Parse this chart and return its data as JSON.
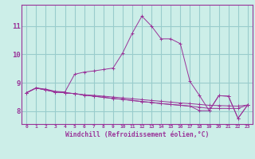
{
  "xlabel": "Windchill (Refroidissement éolien,°C)",
  "bg_color": "#cceee8",
  "line_color": "#993399",
  "grid_color": "#99cccc",
  "axis_color": "#993399",
  "x_ticks": [
    0,
    1,
    2,
    3,
    4,
    5,
    6,
    7,
    8,
    9,
    10,
    11,
    12,
    13,
    14,
    15,
    16,
    17,
    18,
    19,
    20,
    21,
    22,
    23
  ],
  "y_ticks": [
    8,
    9,
    10,
    11
  ],
  "ylim": [
    7.55,
    11.75
  ],
  "xlim": [
    -0.5,
    23.5
  ],
  "lines": [
    [
      8.65,
      8.82,
      8.75,
      8.68,
      8.65,
      8.62,
      8.58,
      8.56,
      8.53,
      8.5,
      8.47,
      8.44,
      8.41,
      8.38,
      8.35,
      8.32,
      8.29,
      8.27,
      8.24,
      8.21,
      8.2,
      8.19,
      8.18,
      8.22
    ],
    [
      8.65,
      8.82,
      8.75,
      8.68,
      8.65,
      8.62,
      8.57,
      8.53,
      8.49,
      8.45,
      8.42,
      8.38,
      8.34,
      8.31,
      8.27,
      8.24,
      8.21,
      8.18,
      8.14,
      8.1,
      8.1,
      8.1,
      8.1,
      8.22
    ],
    [
      8.65,
      8.82,
      8.75,
      8.68,
      8.65,
      8.62,
      8.57,
      8.53,
      8.49,
      8.45,
      8.42,
      8.38,
      8.34,
      8.31,
      8.27,
      8.24,
      8.21,
      8.18,
      8.02,
      8.02,
      8.55,
      8.53,
      7.75,
      8.22
    ],
    [
      8.65,
      8.82,
      8.78,
      8.7,
      8.68,
      9.3,
      9.38,
      9.42,
      9.47,
      9.52,
      10.05,
      10.75,
      11.35,
      11.0,
      10.55,
      10.55,
      10.38,
      9.05,
      8.55,
      8.02,
      8.55,
      8.53,
      7.75,
      8.22
    ]
  ]
}
